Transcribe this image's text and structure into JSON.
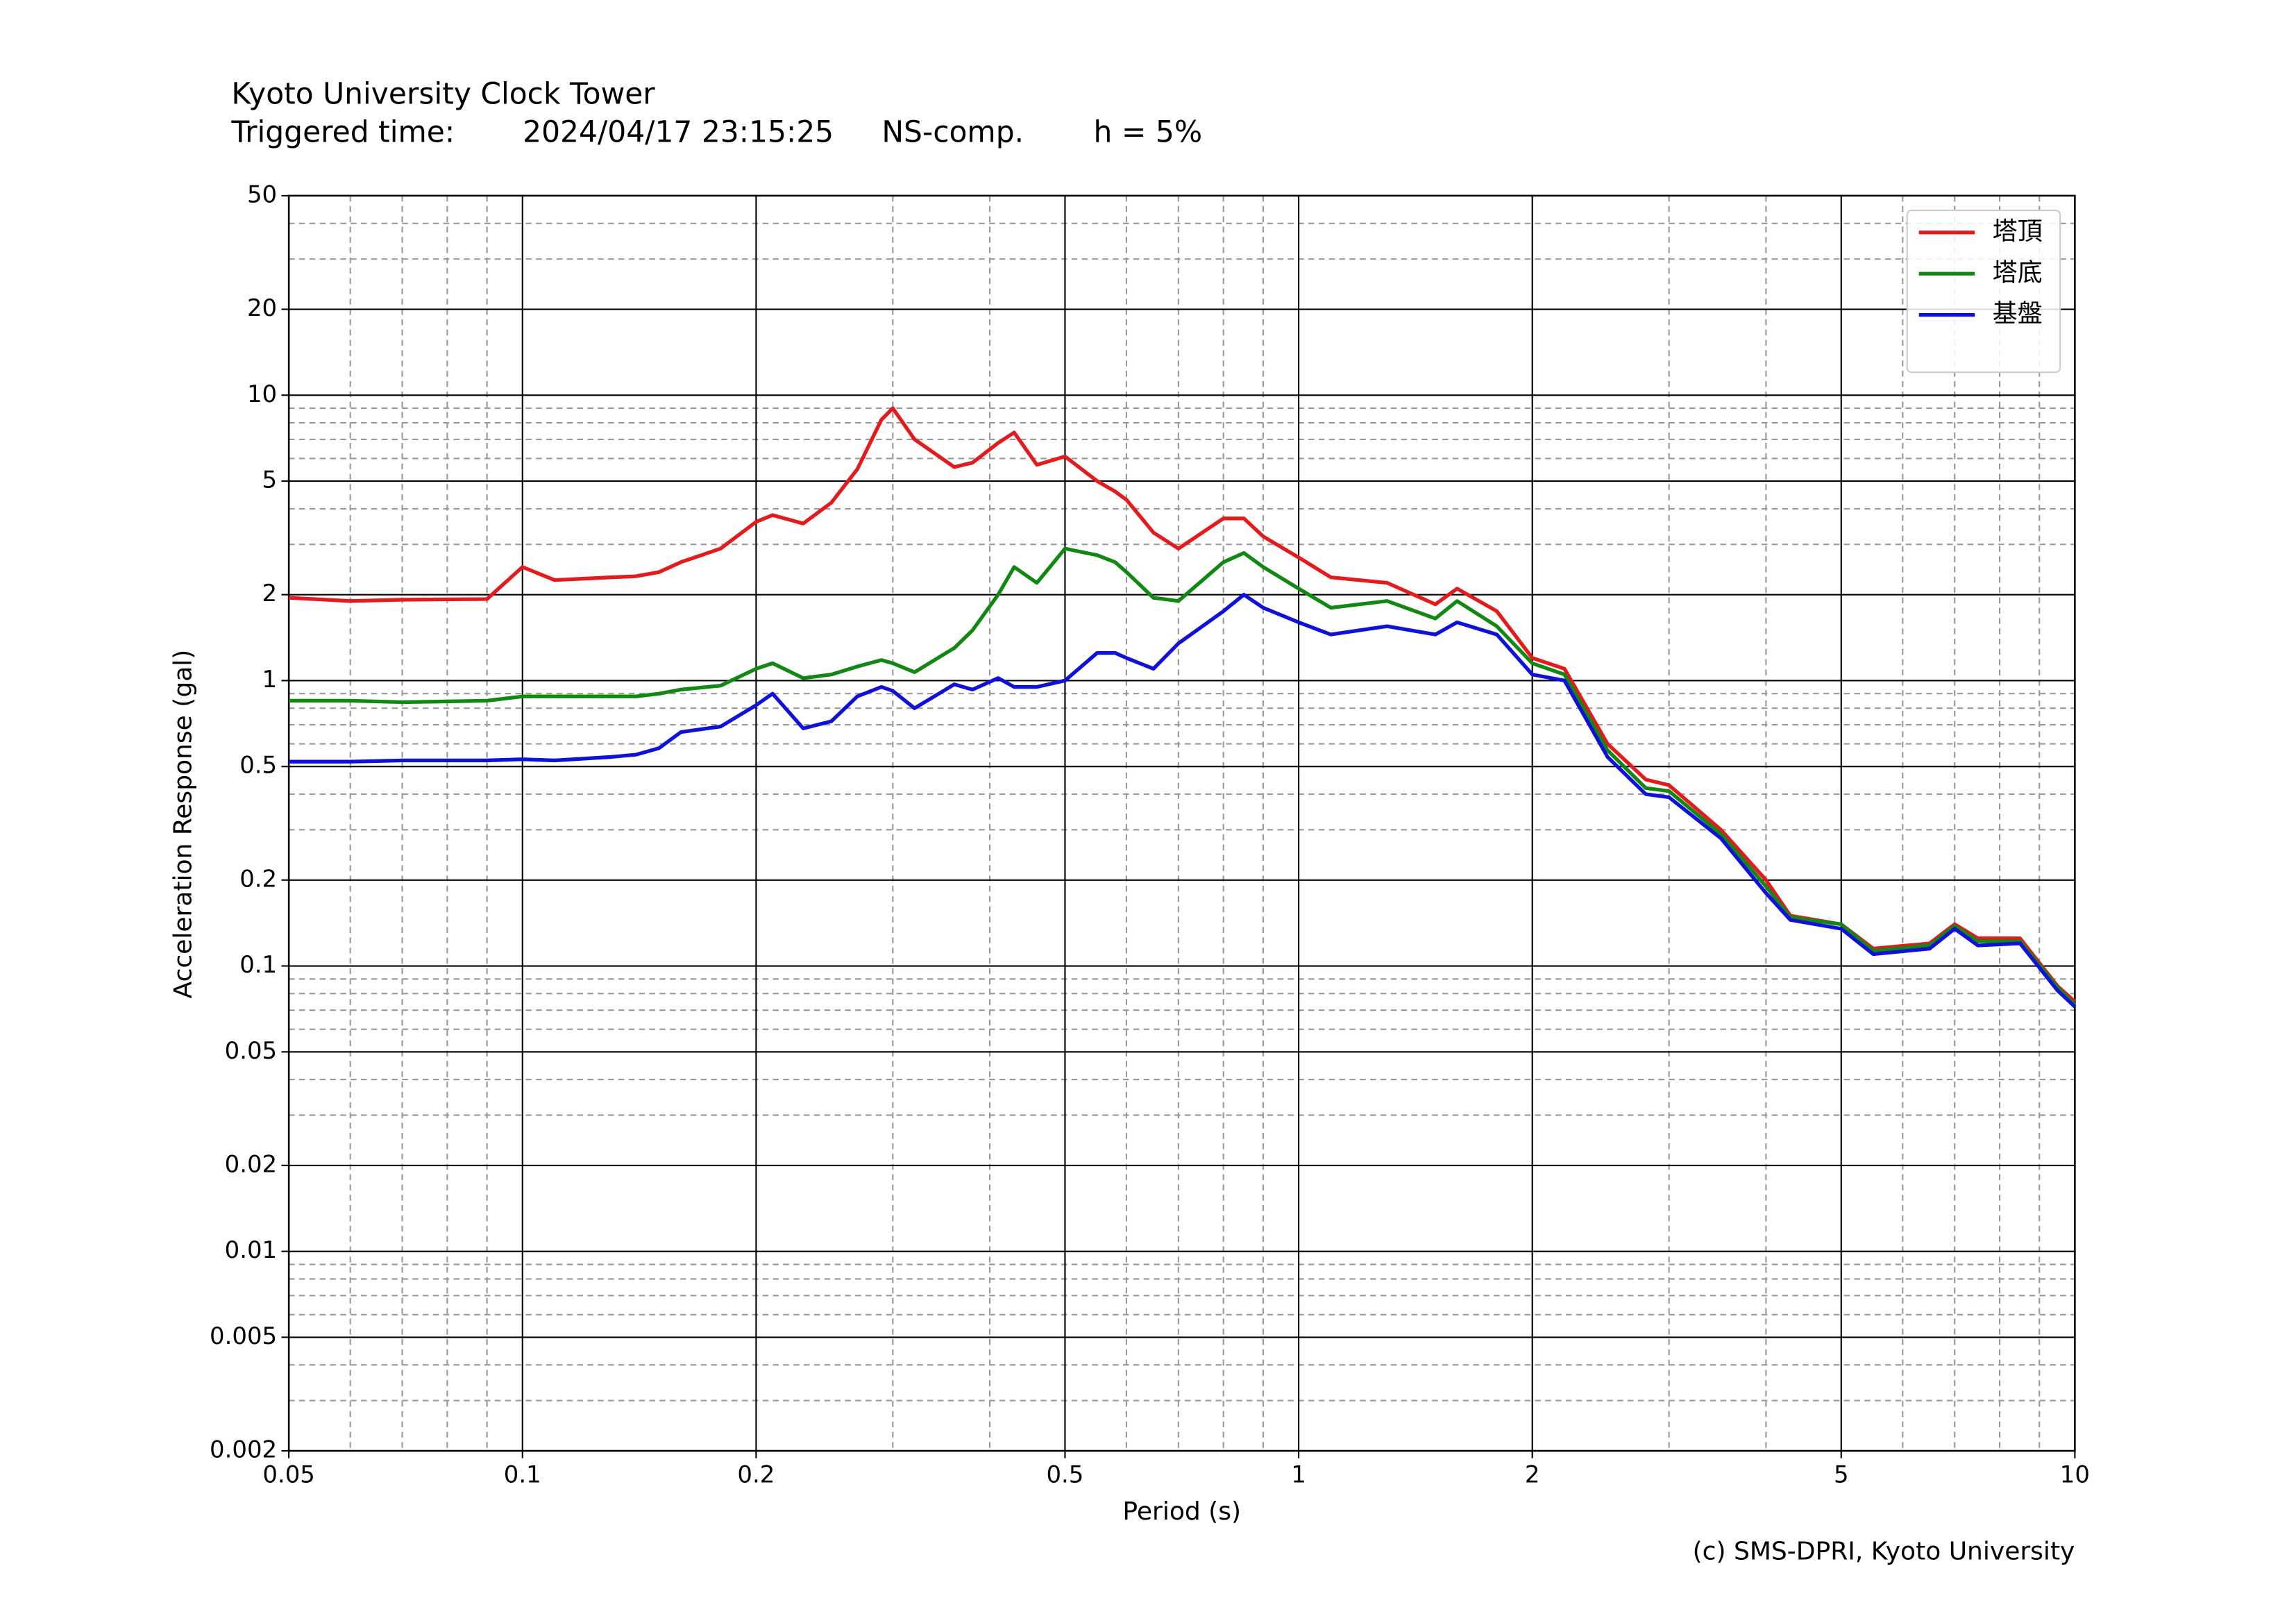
{
  "chart_data": {
    "type": "line",
    "title": "Kyoto University Clock Tower",
    "subtitle_parts": [
      "Triggered time:",
      "2024/04/17 23:15:25",
      "NS-comp.",
      "h = 5%"
    ],
    "annotation": "(c) SMS-DPRI, Kyoto University",
    "x_label": "Period (s)",
    "y_label": "Acceleration Response (gal)",
    "xscale": "log",
    "yscale": "log",
    "grid": true,
    "legend": "upper right",
    "xlim": [
      0.05,
      10
    ],
    "ylim": [
      0.002,
      50
    ],
    "xticks": [
      0.05,
      0.1,
      0.2,
      0.5,
      1,
      2,
      5,
      10
    ],
    "yticks": [
      0.002,
      0.005,
      0.01,
      0.02,
      0.05,
      0.1,
      0.2,
      0.5,
      1,
      2,
      5,
      10,
      20,
      50
    ],
    "xminorticks": [
      0.06,
      0.07,
      0.08,
      0.09,
      0.3,
      0.4,
      0.6,
      0.7,
      0.8,
      0.9,
      3,
      4,
      6,
      7,
      8,
      9
    ],
    "yminorticks": [
      0.003,
      0.004,
      0.006,
      0.007,
      0.008,
      0.009,
      0.03,
      0.04,
      0.06,
      0.07,
      0.08,
      0.09,
      0.3,
      0.4,
      0.6,
      0.7,
      0.8,
      0.9,
      3,
      4,
      6,
      7,
      8,
      9,
      30,
      40
    ],
    "x": [
      0.05,
      0.06,
      0.07,
      0.09,
      0.1,
      0.11,
      0.13,
      0.14,
      0.15,
      0.16,
      0.18,
      0.2,
      0.21,
      0.23,
      0.25,
      0.27,
      0.29,
      0.3,
      0.32,
      0.36,
      0.38,
      0.41,
      0.43,
      0.46,
      0.5,
      0.55,
      0.58,
      0.6,
      0.65,
      0.7,
      0.8,
      0.85,
      0.9,
      1.0,
      1.1,
      1.3,
      1.5,
      1.6,
      1.8,
      2.0,
      2.2,
      2.5,
      2.8,
      3.0,
      3.5,
      4.0,
      4.3,
      5.0,
      5.5,
      6.5,
      7.0,
      7.5,
      8.5,
      9.5,
      10
    ],
    "series": [
      {
        "name": "塔頂",
        "color": "#e41a1c",
        "values": [
          1.95,
          1.9,
          1.92,
          1.93,
          2.5,
          2.25,
          2.3,
          2.32,
          2.4,
          2.6,
          2.9,
          3.6,
          3.8,
          3.55,
          4.2,
          5.5,
          8.2,
          9.0,
          7.0,
          5.6,
          5.8,
          6.8,
          7.4,
          5.7,
          6.1,
          5.0,
          4.6,
          4.3,
          3.3,
          2.9,
          3.7,
          3.7,
          3.2,
          2.7,
          2.3,
          2.2,
          1.85,
          2.1,
          1.75,
          1.2,
          1.1,
          0.6,
          0.45,
          0.43,
          0.3,
          0.2,
          0.15,
          0.14,
          0.115,
          0.12,
          0.14,
          0.125,
          0.125,
          0.085,
          0.075
        ]
      },
      {
        "name": "塔底",
        "color": "#118811",
        "values": [
          0.85,
          0.85,
          0.84,
          0.85,
          0.88,
          0.88,
          0.88,
          0.88,
          0.9,
          0.93,
          0.96,
          1.1,
          1.15,
          1.02,
          1.05,
          1.12,
          1.18,
          1.15,
          1.07,
          1.3,
          1.5,
          2.0,
          2.5,
          2.2,
          2.9,
          2.75,
          2.6,
          2.4,
          1.95,
          1.9,
          2.6,
          2.8,
          2.5,
          2.1,
          1.8,
          1.9,
          1.65,
          1.9,
          1.55,
          1.15,
          1.05,
          0.57,
          0.42,
          0.41,
          0.29,
          0.19,
          0.148,
          0.14,
          0.113,
          0.118,
          0.138,
          0.122,
          0.122,
          0.084,
          0.073
        ]
      },
      {
        "name": "基盤",
        "color": "#1010dd",
        "values": [
          0.52,
          0.52,
          0.525,
          0.525,
          0.53,
          0.525,
          0.54,
          0.55,
          0.58,
          0.66,
          0.69,
          0.82,
          0.9,
          0.68,
          0.72,
          0.88,
          0.95,
          0.92,
          0.8,
          0.97,
          0.93,
          1.02,
          0.95,
          0.95,
          1.0,
          1.25,
          1.25,
          1.2,
          1.1,
          1.35,
          1.75,
          2.0,
          1.8,
          1.6,
          1.45,
          1.55,
          1.45,
          1.6,
          1.45,
          1.05,
          1.0,
          0.54,
          0.4,
          0.39,
          0.28,
          0.18,
          0.145,
          0.135,
          0.11,
          0.115,
          0.135,
          0.118,
          0.12,
          0.082,
          0.072
        ]
      }
    ]
  }
}
